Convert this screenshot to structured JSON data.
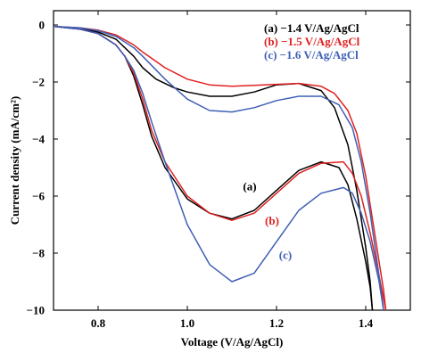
{
  "chart_data": {
    "type": "line",
    "xlabel": "Voltage (V/Ag/AgCl)",
    "ylabel": "Current density (mA/cm²)",
    "xlim": [
      0.7,
      1.5
    ],
    "ylim": [
      -10,
      0.5
    ],
    "xticks": [
      0.8,
      1.0,
      1.2,
      1.4
    ],
    "xtick_labels": [
      "0.8",
      "1.0",
      "1.2",
      "1.4"
    ],
    "yticks": [
      0,
      -2,
      -4,
      -6,
      -8,
      -10
    ],
    "ytick_labels": [
      "0",
      "−2",
      "−4",
      "−6",
      "−8",
      "−10"
    ],
    "grid": false,
    "legend_position": "top-right",
    "series": [
      {
        "name": "(a) −1.4 V/Ag/AgCl",
        "color": "#000000",
        "annotation": "(a)",
        "annotation_at": [
          1.14,
          -5.8
        ],
        "curves": [
          {
            "x": [
              0.7,
              0.76,
              0.8,
              0.84,
              0.86,
              0.88,
              0.9,
              0.92,
              0.95,
              1.0,
              1.05,
              1.1,
              1.15,
              1.2,
              1.25,
              1.3,
              1.34,
              1.36,
              1.38,
              1.4,
              1.41,
              1.415
            ],
            "y": [
              -0.05,
              -0.15,
              -0.3,
              -0.7,
              -1.1,
              -1.8,
              -2.8,
              -3.9,
              -5.0,
              -6.1,
              -6.6,
              -6.8,
              -6.5,
              -5.8,
              -5.1,
              -4.8,
              -5.0,
              -5.6,
              -6.8,
              -8.3,
              -9.2,
              -10.0
            ]
          },
          {
            "x": [
              0.7,
              0.76,
              0.8,
              0.84,
              0.86,
              0.88,
              0.9,
              0.93,
              0.97,
              1.0,
              1.05,
              1.1,
              1.15,
              1.2,
              1.25,
              1.3,
              1.33,
              1.36,
              1.38,
              1.4,
              1.41,
              1.415
            ],
            "y": [
              -0.05,
              -0.12,
              -0.25,
              -0.5,
              -0.8,
              -1.1,
              -1.5,
              -1.9,
              -2.2,
              -2.35,
              -2.5,
              -2.5,
              -2.35,
              -2.1,
              -2.05,
              -2.3,
              -2.9,
              -4.2,
              -5.8,
              -7.8,
              -9.0,
              -10.0
            ]
          }
        ]
      },
      {
        "name": "(b) −1.5 V/Ag/AgCl",
        "color": "#e02020",
        "annotation": "(b)",
        "annotation_at": [
          1.19,
          -7.0
        ],
        "curves": [
          {
            "x": [
              0.7,
              0.76,
              0.8,
              0.84,
              0.86,
              0.88,
              0.9,
              0.92,
              0.95,
              1.0,
              1.05,
              1.1,
              1.15,
              1.2,
              1.25,
              1.3,
              1.35,
              1.37,
              1.39,
              1.41,
              1.43,
              1.445
            ],
            "y": [
              -0.05,
              -0.15,
              -0.3,
              -0.7,
              -1.1,
              -1.7,
              -2.6,
              -3.7,
              -4.8,
              -6.0,
              -6.6,
              -6.85,
              -6.6,
              -5.9,
              -5.2,
              -4.85,
              -4.8,
              -5.2,
              -6.0,
              -7.3,
              -8.8,
              -10.0
            ]
          },
          {
            "x": [
              0.7,
              0.76,
              0.8,
              0.84,
              0.88,
              0.9,
              0.95,
              1.0,
              1.05,
              1.1,
              1.15,
              1.2,
              1.25,
              1.3,
              1.33,
              1.36,
              1.38,
              1.4,
              1.42,
              1.44,
              1.445
            ],
            "y": [
              -0.05,
              -0.1,
              -0.18,
              -0.35,
              -0.7,
              -0.95,
              -1.5,
              -1.9,
              -2.1,
              -2.15,
              -2.12,
              -2.08,
              -2.05,
              -2.15,
              -2.4,
              -3.0,
              -3.8,
              -5.3,
              -7.3,
              -9.3,
              -10.0
            ]
          }
        ]
      },
      {
        "name": "(c) −1.6 V/Ag/AgCl",
        "color": "#3f5fb5",
        "annotation": "(c)",
        "annotation_at": [
          1.22,
          -8.2
        ],
        "curves": [
          {
            "x": [
              0.7,
              0.76,
              0.8,
              0.84,
              0.86,
              0.88,
              0.9,
              0.92,
              0.95,
              1.0,
              1.05,
              1.1,
              1.15,
              1.2,
              1.25,
              1.3,
              1.35,
              1.37,
              1.39,
              1.41,
              1.43,
              1.44
            ],
            "y": [
              -0.05,
              -0.15,
              -0.3,
              -0.7,
              -1.1,
              -1.6,
              -2.4,
              -3.4,
              -4.8,
              -7.0,
              -8.4,
              -9.0,
              -8.7,
              -7.6,
              -6.5,
              -5.9,
              -5.7,
              -5.9,
              -6.6,
              -7.6,
              -9.0,
              -10.0
            ]
          },
          {
            "x": [
              0.7,
              0.76,
              0.8,
              0.84,
              0.88,
              0.9,
              0.95,
              1.0,
              1.05,
              1.1,
              1.15,
              1.2,
              1.25,
              1.3,
              1.34,
              1.37,
              1.39,
              1.41,
              1.43,
              1.44
            ],
            "y": [
              -0.05,
              -0.1,
              -0.2,
              -0.4,
              -0.8,
              -1.1,
              -1.9,
              -2.6,
              -3.0,
              -3.05,
              -2.9,
              -2.65,
              -2.5,
              -2.5,
              -2.8,
              -3.6,
              -4.8,
              -6.6,
              -8.8,
              -10.0
            ]
          }
        ]
      }
    ]
  }
}
